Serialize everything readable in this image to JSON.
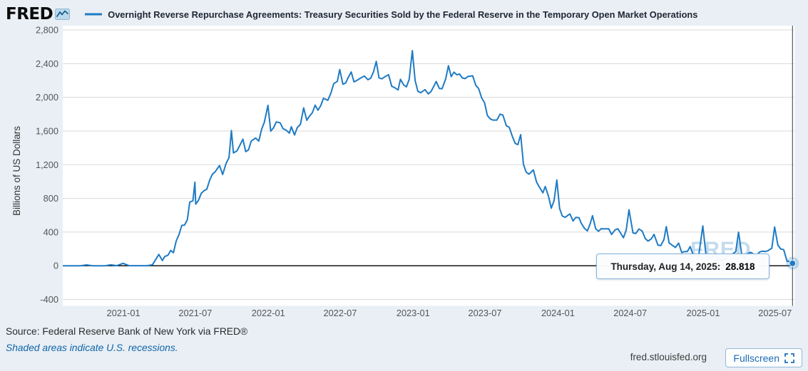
{
  "header": {
    "logo": "FRED",
    "series_title": "Overnight Reverse Repurchase Agreements: Treasury Securities Sold by the Federal Reserve in the Temporary Open Market Operations"
  },
  "watermark": "FRED",
  "tooltip": {
    "date_label": "Thursday, Aug 14, 2025:",
    "value": "28.818"
  },
  "notes": {
    "source": "Source: Federal Reserve Bank of New York via FRED®",
    "recessions": "Shaded areas indicate U.S. recessions."
  },
  "footer": {
    "site": "fred.stlouisfed.org",
    "fullscreen_label": "Fullscreen"
  },
  "colors": {
    "line": "#1f7bc4",
    "background": "#e9eff5",
    "link": "#1064a8",
    "watermark": "#c3dcee"
  },
  "chart_data": {
    "type": "line",
    "title": "Overnight Reverse Repurchase Agreements: Treasury Securities Sold by the Federal Reserve in the Temporary Open Market Operations",
    "xlabel": "",
    "ylabel": "Billions of US Dollars",
    "ylim": [
      -400,
      2800
    ],
    "grid": "horizontal",
    "legend_position": "top",
    "line_color": "#1f7bc4",
    "x_domain": [
      "2020-08-01",
      "2025-08-18"
    ],
    "y_ticks": [
      {
        "value": -400,
        "label": "-400"
      },
      {
        "value": 0,
        "label": "0"
      },
      {
        "value": 400,
        "label": "400"
      },
      {
        "value": 800,
        "label": "800"
      },
      {
        "value": 1200,
        "label": "1,200"
      },
      {
        "value": 1600,
        "label": "1,600"
      },
      {
        "value": 2000,
        "label": "2,000"
      },
      {
        "value": 2400,
        "label": "2,400"
      },
      {
        "value": 2800,
        "label": "2,800"
      }
    ],
    "x_ticks": [
      {
        "date": "2021-01-01",
        "label": "2021-01"
      },
      {
        "date": "2021-07-01",
        "label": "2021-07"
      },
      {
        "date": "2022-01-01",
        "label": "2022-01"
      },
      {
        "date": "2022-07-01",
        "label": "2022-07"
      },
      {
        "date": "2023-01-01",
        "label": "2023-01"
      },
      {
        "date": "2023-07-01",
        "label": "2023-07"
      },
      {
        "date": "2024-01-01",
        "label": "2024-01"
      },
      {
        "date": "2024-07-01",
        "label": "2024-07"
      },
      {
        "date": "2025-01-01",
        "label": "2025-01"
      },
      {
        "date": "2025-07-01",
        "label": "2025-07"
      }
    ],
    "last_point": {
      "date": "2025-08-14",
      "value": 28.818
    },
    "series": [
      {
        "name": "Overnight Reverse Repurchase Agreements: Treasury Securities Sold by the Federal Reserve in the Temporary Open Market Operations",
        "points": [
          [
            "2020-08-03",
            0
          ],
          [
            "2020-08-17",
            0.1
          ],
          [
            "2020-09-01",
            0.1
          ],
          [
            "2020-09-15",
            0.1
          ],
          [
            "2020-09-30",
            10
          ],
          [
            "2020-10-15",
            0.1
          ],
          [
            "2020-10-30",
            0.1
          ],
          [
            "2020-11-16",
            0.2
          ],
          [
            "2020-11-30",
            11
          ],
          [
            "2020-12-15",
            0.6
          ],
          [
            "2020-12-31",
            29
          ],
          [
            "2021-01-15",
            0.5
          ],
          [
            "2021-02-01",
            1
          ],
          [
            "2021-02-16",
            0.9
          ],
          [
            "2021-03-01",
            1
          ],
          [
            "2021-03-15",
            12
          ],
          [
            "2021-03-31",
            134
          ],
          [
            "2021-04-09",
            62
          ],
          [
            "2021-04-15",
            110
          ],
          [
            "2021-04-23",
            125
          ],
          [
            "2021-04-30",
            182
          ],
          [
            "2021-05-07",
            155
          ],
          [
            "2021-05-14",
            294
          ],
          [
            "2021-05-21",
            369
          ],
          [
            "2021-05-28",
            479
          ],
          [
            "2021-06-04",
            483
          ],
          [
            "2021-06-11",
            547
          ],
          [
            "2021-06-17",
            756
          ],
          [
            "2021-06-25",
            771
          ],
          [
            "2021-06-30",
            992
          ],
          [
            "2021-07-02",
            732
          ],
          [
            "2021-07-09",
            776
          ],
          [
            "2021-07-16",
            860
          ],
          [
            "2021-07-23",
            891
          ],
          [
            "2021-07-30",
            909
          ],
          [
            "2021-08-06",
            1014
          ],
          [
            "2021-08-13",
            1087
          ],
          [
            "2021-08-20",
            1116
          ],
          [
            "2021-08-31",
            1190
          ],
          [
            "2021-09-08",
            1083
          ],
          [
            "2021-09-17",
            1218
          ],
          [
            "2021-09-24",
            1283
          ],
          [
            "2021-09-30",
            1605
          ],
          [
            "2021-10-05",
            1340
          ],
          [
            "2021-10-14",
            1364
          ],
          [
            "2021-10-22",
            1436
          ],
          [
            "2021-10-29",
            1503
          ],
          [
            "2021-11-05",
            1355
          ],
          [
            "2021-11-12",
            1375
          ],
          [
            "2021-11-19",
            1480
          ],
          [
            "2021-11-30",
            1517
          ],
          [
            "2021-12-08",
            1480
          ],
          [
            "2021-12-15",
            1619
          ],
          [
            "2021-12-22",
            1704
          ],
          [
            "2021-12-31",
            1905
          ],
          [
            "2022-01-07",
            1599
          ],
          [
            "2022-01-14",
            1636
          ],
          [
            "2022-01-21",
            1708
          ],
          [
            "2022-01-31",
            1697
          ],
          [
            "2022-02-07",
            1628
          ],
          [
            "2022-02-15",
            1610
          ],
          [
            "2022-02-23",
            1575
          ],
          [
            "2022-02-28",
            1650
          ],
          [
            "2022-03-08",
            1552
          ],
          [
            "2022-03-15",
            1640
          ],
          [
            "2022-03-23",
            1680
          ],
          [
            "2022-03-31",
            1874
          ],
          [
            "2022-04-08",
            1727
          ],
          [
            "2022-04-14",
            1770
          ],
          [
            "2022-04-22",
            1818
          ],
          [
            "2022-04-29",
            1906
          ],
          [
            "2022-05-06",
            1846
          ],
          [
            "2022-05-13",
            1900
          ],
          [
            "2022-05-20",
            1988
          ],
          [
            "2022-05-31",
            1965
          ],
          [
            "2022-06-08",
            2052
          ],
          [
            "2022-06-15",
            2163
          ],
          [
            "2022-06-24",
            2189
          ],
          [
            "2022-06-30",
            2330
          ],
          [
            "2022-07-08",
            2155
          ],
          [
            "2022-07-15",
            2170
          ],
          [
            "2022-07-22",
            2241
          ],
          [
            "2022-07-29",
            2300
          ],
          [
            "2022-08-05",
            2183
          ],
          [
            "2022-08-12",
            2200
          ],
          [
            "2022-08-19",
            2221
          ],
          [
            "2022-08-31",
            2253
          ],
          [
            "2022-09-09",
            2208
          ],
          [
            "2022-09-16",
            2226
          ],
          [
            "2022-09-23",
            2300
          ],
          [
            "2022-09-30",
            2426
          ],
          [
            "2022-10-07",
            2230
          ],
          [
            "2022-10-14",
            2219
          ],
          [
            "2022-10-21",
            2241
          ],
          [
            "2022-10-31",
            2269
          ],
          [
            "2022-11-08",
            2130
          ],
          [
            "2022-11-15",
            2116
          ],
          [
            "2022-11-24",
            2087
          ],
          [
            "2022-11-30",
            2213
          ],
          [
            "2022-12-08",
            2147
          ],
          [
            "2022-12-15",
            2124
          ],
          [
            "2022-12-22",
            2213
          ],
          [
            "2022-12-30",
            2554
          ],
          [
            "2023-01-06",
            2199
          ],
          [
            "2023-01-13",
            2070
          ],
          [
            "2023-01-20",
            2054
          ],
          [
            "2023-01-31",
            2091
          ],
          [
            "2023-02-08",
            2041
          ],
          [
            "2023-02-15",
            2068
          ],
          [
            "2023-02-24",
            2150
          ],
          [
            "2023-02-28",
            2188
          ],
          [
            "2023-03-08",
            2105
          ],
          [
            "2023-03-15",
            2102
          ],
          [
            "2023-03-24",
            2220
          ],
          [
            "2023-03-31",
            2375
          ],
          [
            "2023-04-07",
            2245
          ],
          [
            "2023-04-14",
            2299
          ],
          [
            "2023-04-21",
            2267
          ],
          [
            "2023-04-28",
            2277
          ],
          [
            "2023-05-05",
            2229
          ],
          [
            "2023-05-12",
            2222
          ],
          [
            "2023-05-19",
            2247
          ],
          [
            "2023-05-31",
            2255
          ],
          [
            "2023-06-08",
            2142
          ],
          [
            "2023-06-15",
            2104
          ],
          [
            "2023-06-23",
            1989
          ],
          [
            "2023-06-30",
            1934
          ],
          [
            "2023-07-07",
            1784
          ],
          [
            "2023-07-14",
            1745
          ],
          [
            "2023-07-21",
            1730
          ],
          [
            "2023-07-31",
            1730
          ],
          [
            "2023-08-08",
            1800
          ],
          [
            "2023-08-15",
            1789
          ],
          [
            "2023-08-24",
            1661
          ],
          [
            "2023-08-31",
            1645
          ],
          [
            "2023-09-08",
            1537
          ],
          [
            "2023-09-15",
            1453
          ],
          [
            "2023-09-22",
            1438
          ],
          [
            "2023-09-29",
            1556
          ],
          [
            "2023-10-06",
            1204
          ],
          [
            "2023-10-13",
            1110
          ],
          [
            "2023-10-20",
            1088
          ],
          [
            "2023-10-31",
            1138
          ],
          [
            "2023-11-08",
            993
          ],
          [
            "2023-11-15",
            935
          ],
          [
            "2023-11-24",
            866
          ],
          [
            "2023-11-30",
            941
          ],
          [
            "2023-12-08",
            825
          ],
          [
            "2023-12-15",
            683
          ],
          [
            "2023-12-22",
            772
          ],
          [
            "2023-12-29",
            1018
          ],
          [
            "2024-01-05",
            680
          ],
          [
            "2024-01-12",
            590
          ],
          [
            "2024-01-19",
            575
          ],
          [
            "2024-01-31",
            615
          ],
          [
            "2024-02-08",
            532
          ],
          [
            "2024-02-15",
            575
          ],
          [
            "2024-02-23",
            570
          ],
          [
            "2024-02-29",
            500
          ],
          [
            "2024-03-08",
            443
          ],
          [
            "2024-03-15",
            413
          ],
          [
            "2024-03-22",
            496
          ],
          [
            "2024-03-28",
            594
          ],
          [
            "2024-04-05",
            440
          ],
          [
            "2024-04-12",
            409
          ],
          [
            "2024-04-19",
            440
          ],
          [
            "2024-04-30",
            438
          ],
          [
            "2024-05-08",
            439
          ],
          [
            "2024-05-15",
            372
          ],
          [
            "2024-05-24",
            426
          ],
          [
            "2024-05-31",
            439
          ],
          [
            "2024-06-07",
            386
          ],
          [
            "2024-06-14",
            332
          ],
          [
            "2024-06-21",
            424
          ],
          [
            "2024-06-28",
            665
          ],
          [
            "2024-07-08",
            389
          ],
          [
            "2024-07-15",
            383
          ],
          [
            "2024-07-23",
            436
          ],
          [
            "2024-07-31",
            413
          ],
          [
            "2024-08-08",
            323
          ],
          [
            "2024-08-15",
            292
          ],
          [
            "2024-08-23",
            319
          ],
          [
            "2024-08-30",
            372
          ],
          [
            "2024-09-09",
            244
          ],
          [
            "2024-09-16",
            239
          ],
          [
            "2024-09-24",
            311
          ],
          [
            "2024-09-30",
            465
          ],
          [
            "2024-10-07",
            271
          ],
          [
            "2024-10-15",
            243
          ],
          [
            "2024-10-23",
            217
          ],
          [
            "2024-10-31",
            269
          ],
          [
            "2024-11-08",
            156
          ],
          [
            "2024-11-15",
            168
          ],
          [
            "2024-11-22",
            169
          ],
          [
            "2024-11-29",
            227
          ],
          [
            "2024-12-06",
            138
          ],
          [
            "2024-12-13",
            131
          ],
          [
            "2024-12-20",
            98
          ],
          [
            "2024-12-31",
            473
          ],
          [
            "2025-01-08",
            125
          ],
          [
            "2025-01-15",
            92
          ],
          [
            "2025-01-24",
            105
          ],
          [
            "2025-01-31",
            131
          ],
          [
            "2025-02-07",
            78
          ],
          [
            "2025-02-14",
            65
          ],
          [
            "2025-02-24",
            73
          ],
          [
            "2025-02-28",
            104
          ],
          [
            "2025-03-07",
            132
          ],
          [
            "2025-03-14",
            133
          ],
          [
            "2025-03-24",
            167
          ],
          [
            "2025-03-31",
            399
          ],
          [
            "2025-04-08",
            129
          ],
          [
            "2025-04-15",
            94
          ],
          [
            "2025-04-23",
            143
          ],
          [
            "2025-04-30",
            160
          ],
          [
            "2025-05-08",
            139
          ],
          [
            "2025-05-15",
            120
          ],
          [
            "2025-05-23",
            163
          ],
          [
            "2025-05-30",
            173
          ],
          [
            "2025-06-06",
            168
          ],
          [
            "2025-06-13",
            178
          ],
          [
            "2025-06-23",
            209
          ],
          [
            "2025-06-30",
            461
          ],
          [
            "2025-07-08",
            247
          ],
          [
            "2025-07-15",
            200
          ],
          [
            "2025-07-23",
            190
          ],
          [
            "2025-07-31",
            55
          ],
          [
            "2025-08-06",
            51
          ],
          [
            "2025-08-11",
            38
          ],
          [
            "2025-08-14",
            28.818
          ]
        ]
      }
    ]
  }
}
